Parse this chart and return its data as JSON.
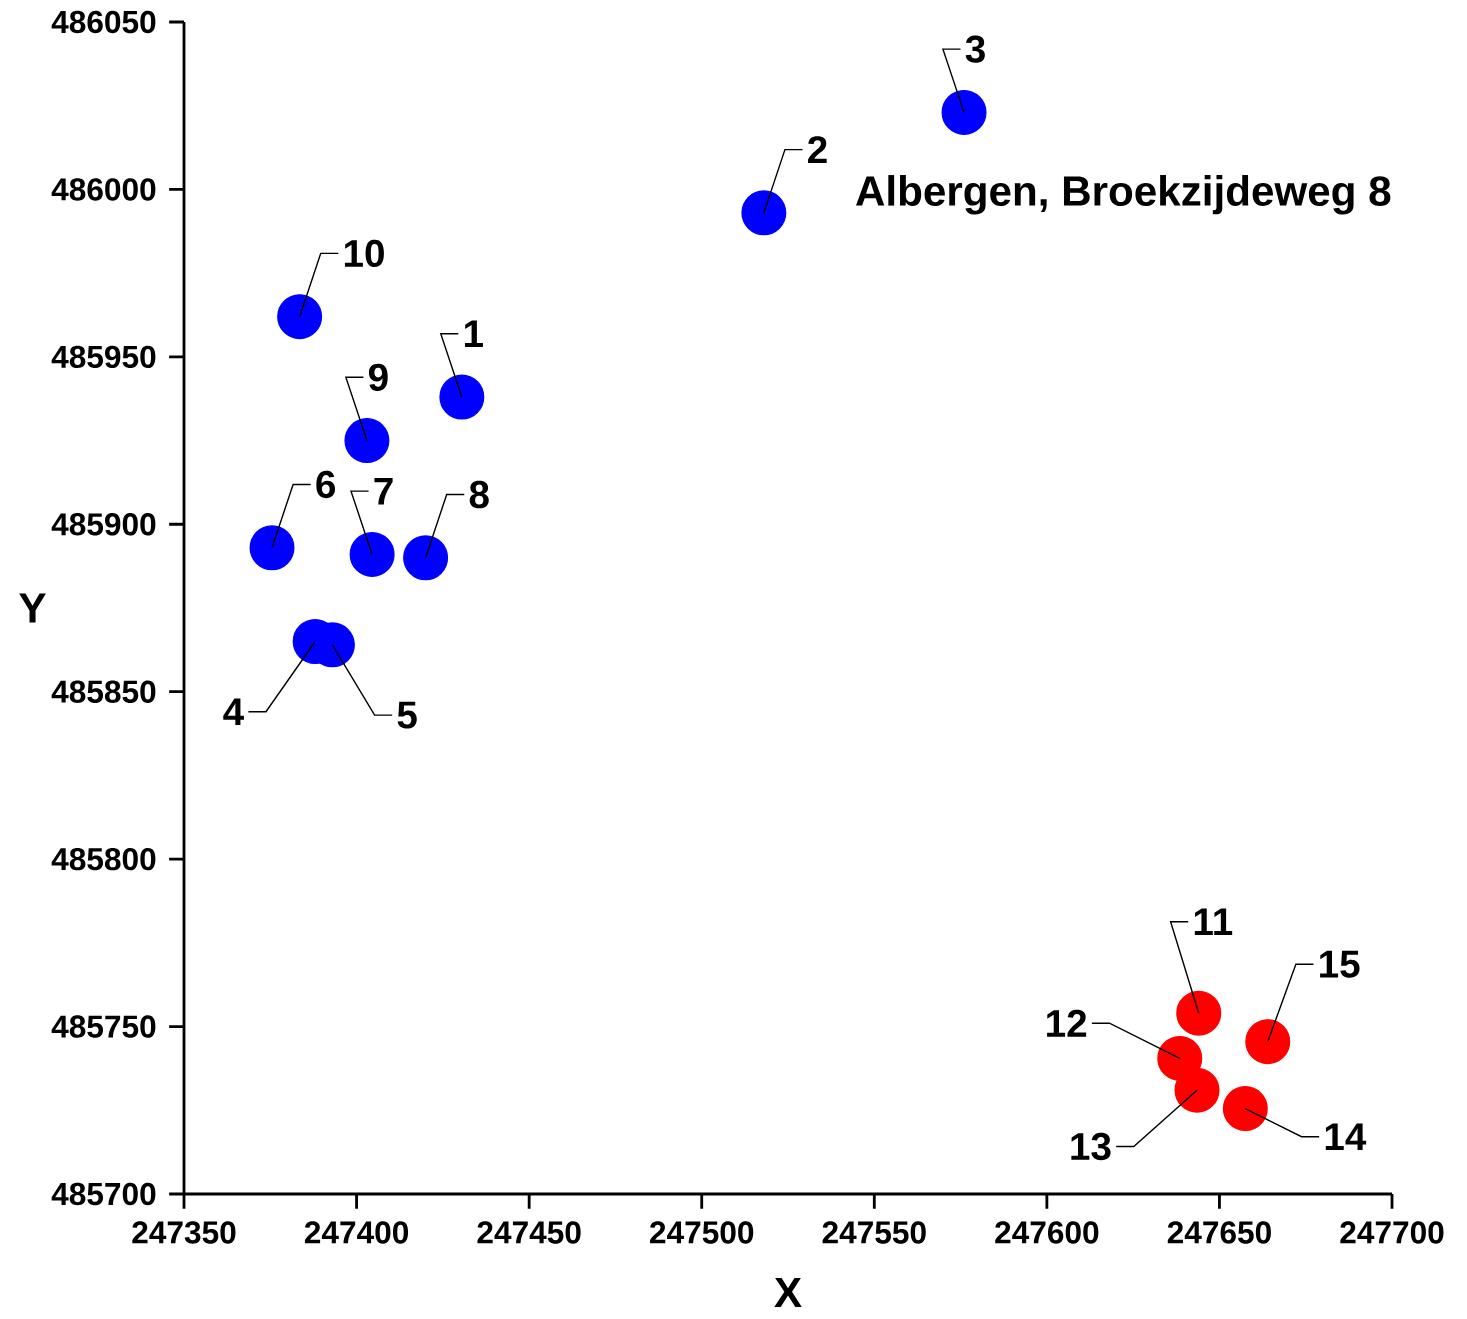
{
  "chart_data": {
    "type": "scatter",
    "title": "Albergen, Broekzijdeweg 8",
    "xlabel": "X",
    "ylabel": "Y",
    "series": [
      {
        "color": "#0000ff",
        "x": [
          247430.5,
          247518,
          247576,
          247388,
          247393,
          247375.5,
          247404.5,
          247420,
          247403,
          247383.5
        ],
        "values": [
          485938,
          485993,
          486023,
          485865,
          485864,
          485893,
          485891,
          485890,
          485925,
          485962
        ]
      },
      {
        "color": "#ff0000",
        "x": [
          247644,
          247638.5,
          247643.5,
          247657.5,
          247664
        ],
        "values": [
          485754,
          485740.5,
          485731,
          485725.5,
          485745.5
        ]
      }
    ],
    "annotations": [
      {
        "text": "1",
        "x": 247430.5,
        "y": 485938
      },
      {
        "text": "2",
        "x": 247518,
        "y": 485993
      },
      {
        "text": "3",
        "x": 247576,
        "y": 486023
      },
      {
        "text": "4",
        "x": 247388,
        "y": 485865
      },
      {
        "text": "5",
        "x": 247393,
        "y": 485864
      },
      {
        "text": "6",
        "x": 247375.5,
        "y": 485893
      },
      {
        "text": "7",
        "x": 247404.5,
        "y": 485891
      },
      {
        "text": "8",
        "x": 247420,
        "y": 485890
      },
      {
        "text": "9",
        "x": 247403,
        "y": 485925
      },
      {
        "text": "10",
        "x": 247383.5,
        "y": 485962
      },
      {
        "text": "11",
        "x": 247644,
        "y": 485754
      },
      {
        "text": "12",
        "x": 247638.5,
        "y": 485740.5
      },
      {
        "text": "13",
        "x": 247643.5,
        "y": 485731
      },
      {
        "text": "14",
        "x": 247657.5,
        "y": 485725.5
      },
      {
        "text": "15",
        "x": 247664,
        "y": 485745.5
      }
    ],
    "xlim": [
      247350,
      247700
    ],
    "xticks": [
      247350,
      247400,
      247450,
      247500,
      247550,
      247600,
      247650,
      247700
    ],
    "ylim": [
      485700,
      486050
    ],
    "yticks": [
      485700,
      485750,
      485800,
      485850,
      485900,
      485950,
      486000,
      486050
    ],
    "grid": false,
    "marker": "circle"
  }
}
